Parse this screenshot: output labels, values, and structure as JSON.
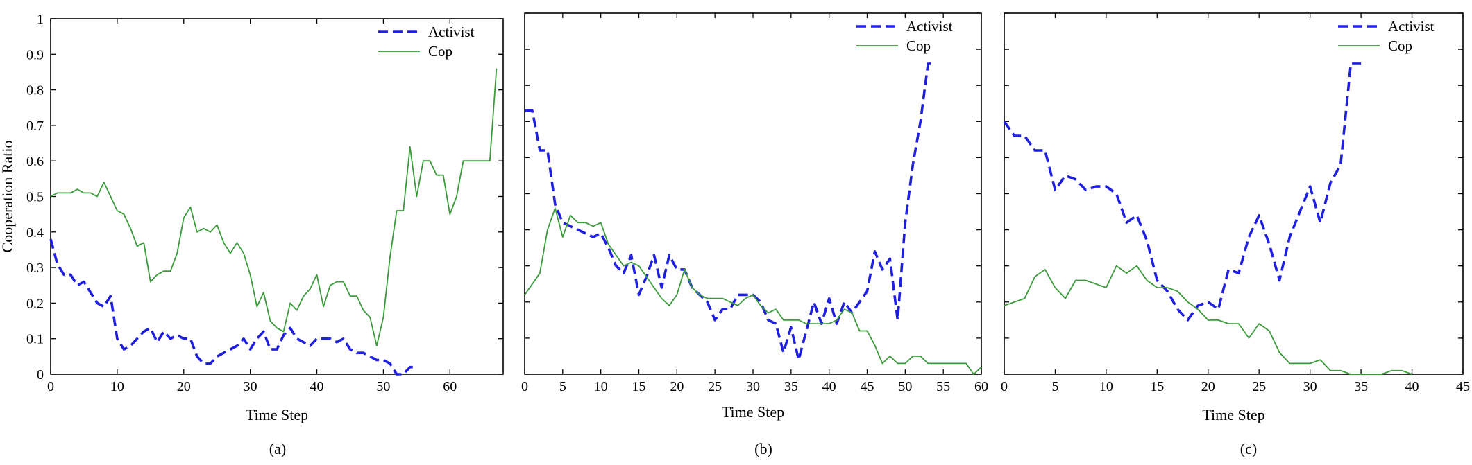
{
  "figure": {
    "panels": [
      "(a)",
      "(b)",
      "(c)"
    ]
  },
  "colors": {
    "activist": "#1f1fe0",
    "cop": "#3a9a3a",
    "axis": "#000000"
  },
  "chart_data": [
    {
      "type": "line",
      "panel_label": "(a)",
      "xlabel": "Time Step",
      "ylabel": "Cooperation Ratio",
      "xlim": [
        0,
        68
      ],
      "ylim": [
        0,
        1
      ],
      "xticks": [
        0,
        10,
        20,
        30,
        40,
        50,
        60
      ],
      "yticks": [
        0,
        0.1,
        0.2,
        0.3,
        0.4,
        0.5,
        0.6,
        0.7,
        0.8,
        0.9,
        1
      ],
      "ytick_labels": [
        "0",
        "0.1",
        "0.2",
        "0.3",
        "0.4",
        "0.5",
        "0.6",
        "0.7",
        "0.8",
        "0.9",
        "1"
      ],
      "legend_position": "top-right",
      "series": [
        {
          "name": "Activist",
          "style": "dashed",
          "x": [
            0,
            1,
            2,
            3,
            4,
            5,
            6,
            7,
            8,
            9,
            10,
            11,
            12,
            13,
            14,
            15,
            16,
            17,
            18,
            19,
            20,
            21,
            22,
            23,
            24,
            25,
            26,
            27,
            28,
            29,
            30,
            31,
            32,
            33,
            34,
            35,
            36,
            37,
            38,
            39,
            40,
            41,
            42,
            43,
            44,
            45,
            46,
            47,
            48,
            49,
            50,
            51,
            52,
            53,
            54,
            55
          ],
          "values": [
            0.38,
            0.31,
            0.28,
            0.28,
            0.25,
            0.26,
            0.23,
            0.2,
            0.19,
            0.22,
            0.1,
            0.07,
            0.08,
            0.1,
            0.12,
            0.13,
            0.09,
            0.12,
            0.1,
            0.11,
            0.1,
            0.1,
            0.05,
            0.03,
            0.03,
            0.05,
            0.06,
            0.07,
            0.08,
            0.1,
            0.07,
            0.1,
            0.12,
            0.07,
            0.07,
            0.11,
            0.13,
            0.1,
            0.09,
            0.08,
            0.1,
            0.1,
            0.1,
            0.09,
            0.1,
            0.07,
            0.06,
            0.06,
            0.05,
            0.04,
            0.04,
            0.03,
            0.0,
            0.0,
            0.02,
            0.02
          ]
        },
        {
          "name": "Cop",
          "style": "solid",
          "x": [
            0,
            1,
            2,
            3,
            4,
            5,
            6,
            7,
            8,
            9,
            10,
            11,
            12,
            13,
            14,
            15,
            16,
            17,
            18,
            19,
            20,
            21,
            22,
            23,
            24,
            25,
            26,
            27,
            28,
            29,
            30,
            31,
            32,
            33,
            34,
            35,
            36,
            37,
            38,
            39,
            40,
            41,
            42,
            43,
            44,
            45,
            46,
            47,
            48,
            49,
            50,
            51,
            52,
            53,
            54,
            55,
            56,
            57,
            58,
            59,
            60,
            61,
            62,
            63,
            64,
            65,
            66,
            67
          ],
          "values": [
            0.5,
            0.51,
            0.51,
            0.51,
            0.52,
            0.51,
            0.51,
            0.5,
            0.54,
            0.5,
            0.46,
            0.45,
            0.41,
            0.36,
            0.37,
            0.26,
            0.28,
            0.29,
            0.29,
            0.34,
            0.44,
            0.47,
            0.4,
            0.41,
            0.4,
            0.42,
            0.37,
            0.34,
            0.37,
            0.34,
            0.28,
            0.19,
            0.23,
            0.15,
            0.13,
            0.12,
            0.2,
            0.18,
            0.22,
            0.24,
            0.28,
            0.19,
            0.25,
            0.26,
            0.26,
            0.22,
            0.22,
            0.18,
            0.16,
            0.08,
            0.16,
            0.33,
            0.46,
            0.46,
            0.64,
            0.5,
            0.6,
            0.6,
            0.56,
            0.56,
            0.45,
            0.5,
            0.6,
            0.6,
            0.6,
            0.6,
            0.6,
            0.86
          ]
        }
      ]
    },
    {
      "type": "line",
      "panel_label": "(b)",
      "xlabel": "Time Step",
      "ylabel": "",
      "xlim": [
        0,
        60
      ],
      "ylim": [
        0,
        1
      ],
      "xticks": [
        0,
        5,
        10,
        15,
        20,
        25,
        30,
        35,
        40,
        45,
        50,
        55,
        60
      ],
      "yticks": [
        0,
        0.1,
        0.2,
        0.3,
        0.4,
        0.5,
        0.6,
        0.7,
        0.8,
        0.9,
        1
      ],
      "ytick_labels": [],
      "legend_position": "top-right",
      "series": [
        {
          "name": "Activist",
          "style": "dashed",
          "x": [
            0,
            1,
            2,
            3,
            4,
            5,
            6,
            7,
            8,
            9,
            10,
            11,
            12,
            13,
            14,
            15,
            16,
            17,
            18,
            19,
            20,
            21,
            22,
            23,
            24,
            25,
            26,
            27,
            28,
            29,
            30,
            31,
            32,
            33,
            34,
            35,
            36,
            37,
            38,
            39,
            40,
            41,
            42,
            43,
            44,
            45,
            46,
            47,
            48,
            49,
            50,
            51,
            52,
            53,
            54
          ],
          "values": [
            0.73,
            0.73,
            0.62,
            0.62,
            0.47,
            0.42,
            0.41,
            0.4,
            0.39,
            0.38,
            0.39,
            0.35,
            0.3,
            0.28,
            0.33,
            0.22,
            0.27,
            0.33,
            0.24,
            0.33,
            0.29,
            0.29,
            0.24,
            0.22,
            0.2,
            0.15,
            0.18,
            0.18,
            0.22,
            0.22,
            0.22,
            0.2,
            0.15,
            0.14,
            0.06,
            0.13,
            0.04,
            0.12,
            0.2,
            0.14,
            0.21,
            0.14,
            0.2,
            0.17,
            0.2,
            0.23,
            0.34,
            0.29,
            0.32,
            0.15,
            0.42,
            0.58,
            0.7,
            0.86,
            0.86
          ]
        },
        {
          "name": "Cop",
          "style": "solid",
          "x": [
            0,
            1,
            2,
            3,
            4,
            5,
            6,
            7,
            8,
            9,
            10,
            11,
            12,
            13,
            14,
            15,
            16,
            17,
            18,
            19,
            20,
            21,
            22,
            23,
            24,
            25,
            26,
            27,
            28,
            29,
            30,
            31,
            32,
            33,
            34,
            35,
            36,
            37,
            38,
            39,
            40,
            41,
            42,
            43,
            44,
            45,
            46,
            47,
            48,
            49,
            50,
            51,
            52,
            53,
            54,
            55,
            56,
            57,
            58,
            59,
            60
          ],
          "values": [
            0.22,
            0.25,
            0.28,
            0.4,
            0.46,
            0.38,
            0.44,
            0.42,
            0.42,
            0.41,
            0.42,
            0.36,
            0.33,
            0.3,
            0.31,
            0.3,
            0.27,
            0.24,
            0.21,
            0.19,
            0.22,
            0.29,
            0.24,
            0.22,
            0.21,
            0.21,
            0.21,
            0.2,
            0.19,
            0.21,
            0.22,
            0.19,
            0.17,
            0.18,
            0.15,
            0.15,
            0.15,
            0.14,
            0.14,
            0.14,
            0.14,
            0.15,
            0.18,
            0.17,
            0.12,
            0.12,
            0.08,
            0.03,
            0.05,
            0.03,
            0.03,
            0.05,
            0.05,
            0.03,
            0.03,
            0.03,
            0.03,
            0.03,
            0.03,
            0.0,
            0.02
          ]
        }
      ]
    },
    {
      "type": "line",
      "panel_label": "(c)",
      "xlabel": "Time Step",
      "ylabel": "",
      "xlim": [
        0,
        45
      ],
      "ylim": [
        0,
        1
      ],
      "xticks": [
        0,
        5,
        10,
        15,
        20,
        25,
        30,
        35,
        40,
        45
      ],
      "yticks": [
        0,
        0.1,
        0.2,
        0.3,
        0.4,
        0.5,
        0.6,
        0.7,
        0.8,
        0.9,
        1
      ],
      "ytick_labels": [],
      "legend_position": "top-right",
      "series": [
        {
          "name": "Activist",
          "style": "dashed",
          "x": [
            0,
            1,
            2,
            3,
            4,
            5,
            6,
            7,
            8,
            9,
            10,
            11,
            12,
            13,
            14,
            15,
            16,
            17,
            18,
            19,
            20,
            21,
            22,
            23,
            24,
            25,
            26,
            27,
            28,
            29,
            30,
            31,
            32,
            33,
            34,
            35
          ],
          "values": [
            0.7,
            0.66,
            0.66,
            0.62,
            0.62,
            0.51,
            0.55,
            0.54,
            0.51,
            0.52,
            0.52,
            0.5,
            0.42,
            0.44,
            0.37,
            0.26,
            0.23,
            0.18,
            0.15,
            0.19,
            0.2,
            0.18,
            0.29,
            0.28,
            0.38,
            0.44,
            0.36,
            0.26,
            0.38,
            0.45,
            0.52,
            0.42,
            0.53,
            0.58,
            0.86,
            0.86
          ]
        },
        {
          "name": "Cop",
          "style": "solid",
          "x": [
            0,
            1,
            2,
            3,
            4,
            5,
            6,
            7,
            8,
            9,
            10,
            11,
            12,
            13,
            14,
            15,
            16,
            17,
            18,
            19,
            20,
            21,
            22,
            23,
            24,
            25,
            26,
            27,
            28,
            29,
            30,
            31,
            32,
            33,
            34,
            35,
            36,
            37,
            38,
            39,
            40
          ],
          "values": [
            0.19,
            0.2,
            0.21,
            0.27,
            0.29,
            0.24,
            0.21,
            0.26,
            0.26,
            0.25,
            0.24,
            0.3,
            0.28,
            0.3,
            0.26,
            0.24,
            0.24,
            0.23,
            0.2,
            0.18,
            0.15,
            0.15,
            0.14,
            0.14,
            0.1,
            0.14,
            0.12,
            0.06,
            0.03,
            0.03,
            0.03,
            0.04,
            0.01,
            0.01,
            0.0,
            0.0,
            0.0,
            0.0,
            0.01,
            0.01,
            0.0
          ]
        }
      ]
    }
  ]
}
